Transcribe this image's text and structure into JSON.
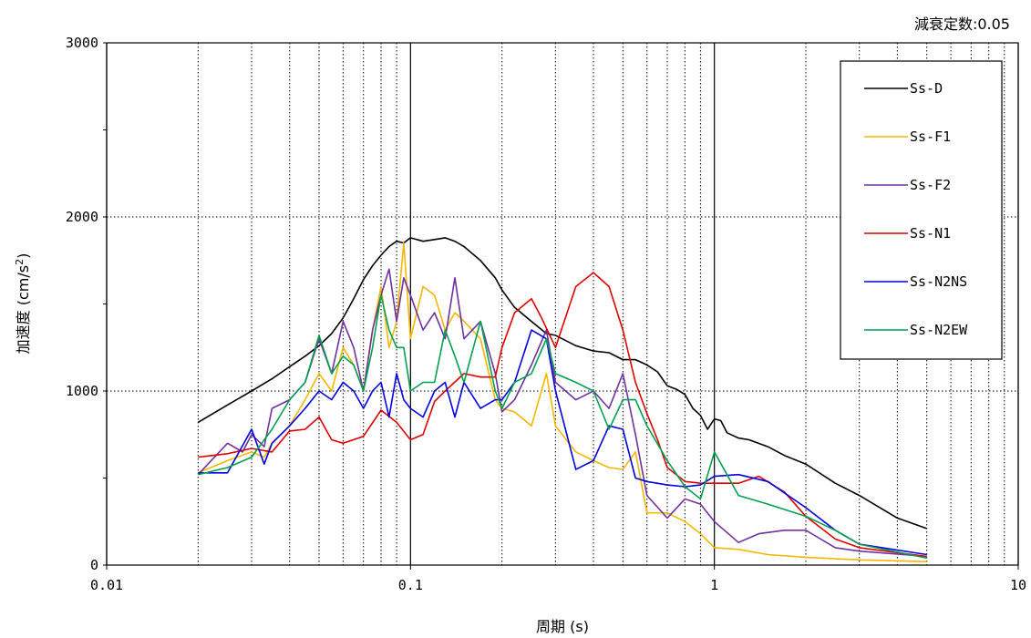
{
  "chart_data": {
    "type": "line",
    "note": "減衰定数:0.05",
    "xlabel": "周期 (s)",
    "ylabel_main": "加速度 (cm/s",
    "ylabel_sup": "2",
    "ylabel_close": ")",
    "x_scale": "log",
    "xlim": [
      0.01,
      10
    ],
    "ylim": [
      0,
      3000
    ],
    "x_ticks": [
      {
        "value": 0.01,
        "label": "0.01"
      },
      {
        "value": 0.1,
        "label": "0.1"
      },
      {
        "value": 1,
        "label": "1"
      },
      {
        "value": 10,
        "label": "10"
      }
    ],
    "y_ticks": [
      {
        "value": 0,
        "label": "0"
      },
      {
        "value": 1000,
        "label": "1000"
      },
      {
        "value": 2000,
        "label": "2000"
      },
      {
        "value": 3000,
        "label": "3000"
      }
    ],
    "grid": true,
    "legend_position": "top-right",
    "series": [
      {
        "name": "Ss-D",
        "color": "#000000",
        "x": [
          0.02,
          0.025,
          0.03,
          0.035,
          0.04,
          0.045,
          0.05,
          0.055,
          0.06,
          0.065,
          0.07,
          0.075,
          0.08,
          0.085,
          0.09,
          0.095,
          0.1,
          0.11,
          0.12,
          0.13,
          0.14,
          0.15,
          0.17,
          0.19,
          0.2,
          0.22,
          0.25,
          0.28,
          0.3,
          0.35,
          0.4,
          0.45,
          0.5,
          0.55,
          0.6,
          0.65,
          0.7,
          0.75,
          0.8,
          0.85,
          0.9,
          0.95,
          1.0,
          1.05,
          1.1,
          1.2,
          1.3,
          1.5,
          1.7,
          2.0,
          2.5,
          3.0,
          4.0,
          5.0
        ],
        "y": [
          820,
          920,
          1000,
          1070,
          1140,
          1200,
          1260,
          1330,
          1420,
          1530,
          1640,
          1720,
          1780,
          1830,
          1860,
          1850,
          1880,
          1860,
          1870,
          1880,
          1860,
          1830,
          1750,
          1650,
          1580,
          1480,
          1400,
          1330,
          1320,
          1260,
          1230,
          1220,
          1180,
          1180,
          1150,
          1110,
          1030,
          1010,
          980,
          900,
          860,
          780,
          840,
          830,
          760,
          730,
          720,
          680,
          630,
          580,
          470,
          400,
          270,
          210
        ]
      },
      {
        "name": "Ss-F1",
        "color": "#f5b800",
        "x": [
          0.02,
          0.025,
          0.03,
          0.033,
          0.035,
          0.04,
          0.045,
          0.05,
          0.055,
          0.06,
          0.065,
          0.07,
          0.075,
          0.08,
          0.085,
          0.09,
          0.095,
          0.1,
          0.11,
          0.12,
          0.13,
          0.14,
          0.15,
          0.17,
          0.19,
          0.2,
          0.22,
          0.25,
          0.28,
          0.3,
          0.35,
          0.4,
          0.45,
          0.5,
          0.55,
          0.6,
          0.7,
          0.8,
          0.9,
          1.0,
          1.2,
          1.5,
          2.0,
          3.0,
          5.0
        ],
        "y": [
          530,
          600,
          650,
          620,
          700,
          800,
          950,
          1100,
          1000,
          1250,
          1150,
          1000,
          1350,
          1600,
          1250,
          1400,
          1850,
          1300,
          1600,
          1550,
          1350,
          1450,
          1400,
          1300,
          950,
          900,
          880,
          800,
          1100,
          800,
          650,
          600,
          560,
          550,
          650,
          300,
          300,
          250,
          180,
          100,
          90,
          60,
          45,
          30,
          20
        ]
      },
      {
        "name": "Ss-F2",
        "color": "#7030a0",
        "x": [
          0.02,
          0.025,
          0.028,
          0.03,
          0.033,
          0.035,
          0.04,
          0.045,
          0.05,
          0.055,
          0.06,
          0.065,
          0.07,
          0.075,
          0.08,
          0.085,
          0.09,
          0.095,
          0.1,
          0.11,
          0.12,
          0.13,
          0.14,
          0.15,
          0.17,
          0.19,
          0.2,
          0.22,
          0.25,
          0.28,
          0.3,
          0.35,
          0.4,
          0.45,
          0.5,
          0.55,
          0.6,
          0.7,
          0.8,
          0.9,
          1.0,
          1.2,
          1.4,
          1.7,
          2.0,
          2.5,
          3.0,
          5.0
        ],
        "y": [
          520,
          700,
          650,
          750,
          680,
          900,
          950,
          1050,
          1300,
          1100,
          1400,
          1250,
          1000,
          1350,
          1550,
          1700,
          1400,
          1650,
          1550,
          1350,
          1450,
          1300,
          1650,
          1300,
          1400,
          1100,
          880,
          950,
          1150,
          1350,
          1050,
          950,
          1000,
          900,
          1100,
          750,
          400,
          270,
          380,
          350,
          250,
          130,
          180,
          200,
          200,
          100,
          80,
          50
        ]
      },
      {
        "name": "Ss-N1",
        "color": "#e00000",
        "x": [
          0.02,
          0.025,
          0.03,
          0.035,
          0.04,
          0.045,
          0.05,
          0.055,
          0.06,
          0.07,
          0.08,
          0.09,
          0.1,
          0.11,
          0.12,
          0.13,
          0.15,
          0.17,
          0.19,
          0.2,
          0.22,
          0.25,
          0.27,
          0.3,
          0.35,
          0.4,
          0.45,
          0.5,
          0.55,
          0.6,
          0.65,
          0.7,
          0.8,
          0.9,
          1.0,
          1.2,
          1.4,
          1.7,
          2.0,
          2.5,
          3.0,
          5.0
        ],
        "y": [
          620,
          640,
          670,
          650,
          770,
          780,
          850,
          720,
          700,
          740,
          890,
          820,
          720,
          750,
          940,
          1000,
          1100,
          1080,
          1080,
          1250,
          1450,
          1530,
          1420,
          1250,
          1600,
          1680,
          1600,
          1350,
          1050,
          870,
          720,
          560,
          480,
          470,
          470,
          470,
          510,
          420,
          280,
          150,
          100,
          50
        ]
      },
      {
        "name": "Ss-N2NS",
        "color": "#0000e0",
        "x": [
          0.02,
          0.025,
          0.03,
          0.033,
          0.035,
          0.04,
          0.045,
          0.05,
          0.055,
          0.06,
          0.065,
          0.07,
          0.075,
          0.08,
          0.085,
          0.09,
          0.095,
          0.1,
          0.11,
          0.12,
          0.13,
          0.14,
          0.15,
          0.17,
          0.19,
          0.2,
          0.22,
          0.25,
          0.28,
          0.3,
          0.35,
          0.4,
          0.45,
          0.5,
          0.55,
          0.6,
          0.7,
          0.8,
          0.9,
          1.0,
          1.2,
          1.5,
          2.0,
          2.5,
          3.0,
          5.0
        ],
        "y": [
          530,
          530,
          780,
          580,
          700,
          800,
          900,
          1000,
          950,
          1050,
          1000,
          900,
          1000,
          1050,
          850,
          1100,
          950,
          900,
          850,
          1000,
          1050,
          850,
          1050,
          900,
          950,
          950,
          1050,
          1350,
          1300,
          1000,
          550,
          600,
          800,
          780,
          500,
          480,
          460,
          450,
          460,
          510,
          520,
          480,
          330,
          200,
          120,
          60
        ]
      },
      {
        "name": "Ss-N2EW",
        "color": "#00a050",
        "x": [
          0.02,
          0.025,
          0.03,
          0.035,
          0.04,
          0.045,
          0.05,
          0.055,
          0.06,
          0.065,
          0.07,
          0.075,
          0.08,
          0.085,
          0.09,
          0.095,
          0.1,
          0.11,
          0.12,
          0.13,
          0.14,
          0.15,
          0.17,
          0.19,
          0.2,
          0.22,
          0.25,
          0.28,
          0.3,
          0.35,
          0.4,
          0.45,
          0.5,
          0.55,
          0.6,
          0.7,
          0.8,
          0.9,
          1.0,
          1.1,
          1.2,
          1.5,
          2.0,
          2.5,
          3.0,
          5.0
        ],
        "y": [
          520,
          560,
          620,
          780,
          950,
          1050,
          1320,
          1100,
          1200,
          1150,
          1000,
          1250,
          1550,
          1350,
          1250,
          1250,
          1000,
          1050,
          1050,
          1350,
          1200,
          1050,
          1400,
          1000,
          900,
          1050,
          1100,
          1300,
          1100,
          1050,
          1000,
          780,
          950,
          950,
          800,
          600,
          450,
          380,
          650,
          520,
          400,
          350,
          280,
          200,
          120,
          40
        ]
      }
    ]
  }
}
